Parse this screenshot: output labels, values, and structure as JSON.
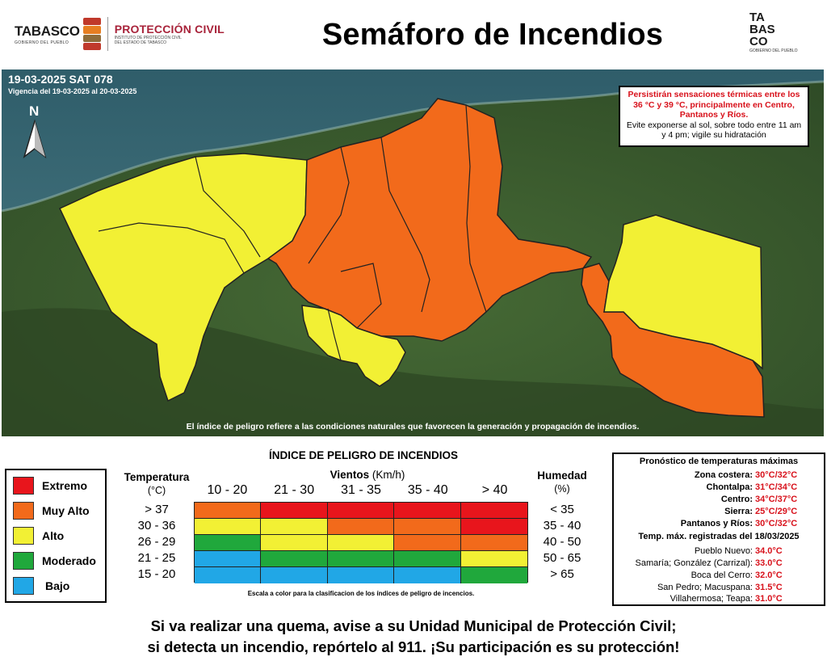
{
  "header": {
    "logo_left_word": "TABASCO",
    "logo_left_sub": "GOBIERNO DEL PUEBLO",
    "logo_pc_word": "PROTECCIÓN CIVIL",
    "logo_pc_sub1": "INSTITUTO DE PROTECCIÓN CIVIL",
    "logo_pc_sub2": "DEL ESTADO DE TABASCO",
    "title": "Semáforo de Incendios",
    "logo_right_r1": "TA",
    "logo_right_r2": "BAS",
    "logo_right_r3": "CO",
    "logo_right_sub": "GOBIERNO DEL PUEBLO"
  },
  "map": {
    "date": "19-03-2025 SAT 078",
    "validity": "Vigencia del 19-03-2025 al 20-03-2025",
    "north": "N",
    "warning_red": "Persistirán sensaciones térmicas entre los 36 °C y 39 °C, principalmente en Centro, Pantanos y Ríos.",
    "warning_black": "Evite exponerse al sol, sobre todo entre 11 am y 4 pm; vigile su hidratación",
    "footnote": "El índice de peligro refiere a las condiciones naturales que favorecen la generación y propagación de incendios.",
    "colors": {
      "extremo": "#e8151c",
      "muy_alto": "#f26a1b",
      "alto": "#f2f034",
      "moderado": "#20a83c",
      "bajo": "#21a7e6",
      "sea": "#3f6f7c",
      "land": "#3d5a2f"
    }
  },
  "legend": {
    "items": [
      {
        "label": "Extremo",
        "color": "#e8151c"
      },
      {
        "label": "Muy Alto",
        "color": "#f26a1b"
      },
      {
        "label": "Alto",
        "color": "#f2f034"
      },
      {
        "label": "Moderado",
        "color": "#20a83c"
      },
      {
        "label": "Bajo",
        "color": "#21a7e6"
      }
    ]
  },
  "index": {
    "title": "ÍNDICE DE PELIGRO DE INCENDIOS",
    "temp_header": "Temperatura",
    "temp_unit": "(°C)",
    "wind_header": "Vientos",
    "wind_unit": "(Km/h)",
    "hum_header": "Humedad",
    "hum_unit": "(%)",
    "wind_cols": [
      "10 - 20",
      "21 - 30",
      "31 - 35",
      "35 - 40",
      "> 40"
    ],
    "temp_rows": [
      "> 37",
      "30 - 36",
      "26 - 29",
      "21 - 25",
      "15 - 20"
    ],
    "hum_rows": [
      "< 35",
      "35 - 40",
      "40 - 50",
      "50 - 65",
      "> 65"
    ],
    "grid": [
      [
        "#f26a1b",
        "#e8151c",
        "#e8151c",
        "#e8151c",
        "#e8151c"
      ],
      [
        "#f2f034",
        "#f2f034",
        "#f26a1b",
        "#f26a1b",
        "#e8151c"
      ],
      [
        "#20a83c",
        "#f2f034",
        "#f2f034",
        "#f26a1b",
        "#f26a1b"
      ],
      [
        "#21a7e6",
        "#20a83c",
        "#20a83c",
        "#20a83c",
        "#f2f034"
      ],
      [
        "#21a7e6",
        "#21a7e6",
        "#21a7e6",
        "#21a7e6",
        "#20a83c"
      ]
    ],
    "scale_note": "Escala a color para la clasificacion de los índices de peligro de incencios."
  },
  "forecast": {
    "title": "Pronóstico de temperaturas máximas",
    "zones": [
      {
        "name": "Zona costera:",
        "value": "30°C/32°C"
      },
      {
        "name": "Chontalpa:",
        "value": "31°C/34°C"
      },
      {
        "name": "Centro:",
        "value": "34°C/37°C"
      },
      {
        "name": "Sierra:",
        "value": "25°C/29°C"
      },
      {
        "name": "Pantanos y Ríos:",
        "value": "30°C/32°C"
      }
    ],
    "recorded_title": "Temp. máx. registradas del 18/03/2025",
    "recorded": [
      {
        "name": "Pueblo Nuevo:",
        "value": "34.0°C"
      },
      {
        "name": "Samaría; González (Carrizal):",
        "value": "33.0°C"
      },
      {
        "name": "Boca del Cerro:",
        "value": "32.0°C"
      },
      {
        "name": "San Pedro; Macuspana:",
        "value": "31.5°C"
      },
      {
        "name": "Villahermosa; Teapa:",
        "value": "31.0°C"
      }
    ]
  },
  "bottom": {
    "line1": "Si va realizar una quema, avise a su Unidad Municipal de Protección Civil;",
    "line2": "si detecta un incendio, repórtelo al 911. ¡Su participación es su protección!"
  }
}
